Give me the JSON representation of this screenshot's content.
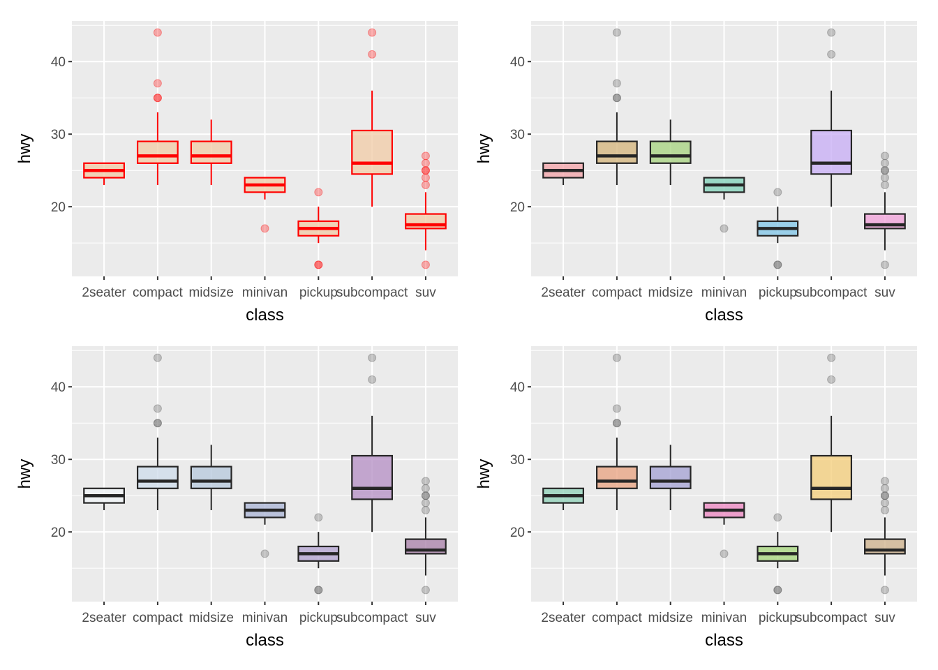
{
  "chart_data": [
    {
      "type": "box",
      "panel": "top-left",
      "xlabel": "class",
      "ylabel": "hwy",
      "ylim": [
        10.4,
        45.6
      ],
      "yticks": [
        20,
        30,
        40
      ],
      "ytick_labels": [
        "20",
        "30",
        "40"
      ],
      "grid": true,
      "categories": [
        "2seater",
        "compact",
        "midsize",
        "minivan",
        "pickup",
        "subcompact",
        "suv"
      ],
      "style": {
        "outline": "#FF0000",
        "fill": [
          "#F2CBA6",
          "#F2CBA6",
          "#F2CBA6",
          "#F2CBA6",
          "#F2CBA6",
          "#F2CBA6",
          "#F2CBA6"
        ],
        "outlier": "#FF0000"
      },
      "boxes": [
        {
          "lower": 23,
          "q1": 24,
          "median": 25,
          "q3": 26,
          "upper": 26,
          "outliers": []
        },
        {
          "lower": 23,
          "q1": 26,
          "median": 27,
          "q3": 29,
          "upper": 33,
          "outliers": [
            35,
            35,
            37,
            44
          ]
        },
        {
          "lower": 23,
          "q1": 26,
          "median": 27,
          "q3": 29,
          "upper": 32,
          "outliers": []
        },
        {
          "lower": 21,
          "q1": 22,
          "median": 23,
          "q3": 24,
          "upper": 24,
          "outliers": [
            17
          ]
        },
        {
          "lower": 15,
          "q1": 16,
          "median": 17,
          "q3": 18,
          "upper": 20,
          "outliers": [
            12,
            12,
            22
          ]
        },
        {
          "lower": 20,
          "q1": 24.5,
          "median": 26,
          "q3": 30.5,
          "upper": 36,
          "outliers": [
            41,
            44
          ]
        },
        {
          "lower": 14,
          "q1": 17,
          "median": 17.5,
          "q3": 19,
          "upper": 22,
          "outliers": [
            12,
            23,
            24,
            25,
            25,
            26,
            27
          ]
        }
      ]
    },
    {
      "type": "box",
      "panel": "top-right",
      "xlabel": "class",
      "ylabel": "hwy",
      "ylim": [
        10.4,
        45.6
      ],
      "yticks": [
        20,
        30,
        40
      ],
      "ytick_labels": [
        "20",
        "30",
        "40"
      ],
      "grid": true,
      "categories": [
        "2seater",
        "compact",
        "midsize",
        "minivan",
        "pickup",
        "subcompact",
        "suv"
      ],
      "style": {
        "outline": "#262626",
        "fill": [
          "#F4A3A8",
          "#D4B47A",
          "#A6D37E",
          "#7FD2B8",
          "#7FC6E8",
          "#C7ACF5",
          "#F1A0DA"
        ],
        "outlier": "#555555"
      },
      "boxes": [
        {
          "lower": 23,
          "q1": 24,
          "median": 25,
          "q3": 26,
          "upper": 26,
          "outliers": []
        },
        {
          "lower": 23,
          "q1": 26,
          "median": 27,
          "q3": 29,
          "upper": 33,
          "outliers": [
            35,
            35,
            37,
            44
          ]
        },
        {
          "lower": 23,
          "q1": 26,
          "median": 27,
          "q3": 29,
          "upper": 32,
          "outliers": []
        },
        {
          "lower": 21,
          "q1": 22,
          "median": 23,
          "q3": 24,
          "upper": 24,
          "outliers": [
            17
          ]
        },
        {
          "lower": 15,
          "q1": 16,
          "median": 17,
          "q3": 18,
          "upper": 20,
          "outliers": [
            12,
            12,
            22
          ]
        },
        {
          "lower": 20,
          "q1": 24.5,
          "median": 26,
          "q3": 30.5,
          "upper": 36,
          "outliers": [
            41,
            44
          ]
        },
        {
          "lower": 14,
          "q1": 17,
          "median": 17.5,
          "q3": 19,
          "upper": 22,
          "outliers": [
            12,
            23,
            24,
            25,
            25,
            26,
            27
          ]
        }
      ]
    },
    {
      "type": "box",
      "panel": "bottom-left",
      "xlabel": "class",
      "ylabel": "hwy",
      "ylim": [
        10.4,
        45.6
      ],
      "yticks": [
        20,
        30,
        40
      ],
      "ytick_labels": [
        "20",
        "30",
        "40"
      ],
      "grid": true,
      "categories": [
        "2seater",
        "compact",
        "midsize",
        "minivan",
        "pickup",
        "subcompact",
        "suv"
      ],
      "style": {
        "outline": "#262626",
        "fill": [
          "#F0F4F7",
          "#CEDCEB",
          "#B6C8DC",
          "#A9B4D6",
          "#B1A1D0",
          "#B48EC4",
          "#A87FA8"
        ],
        "outlier": "#555555"
      },
      "boxes": [
        {
          "lower": 23,
          "q1": 24,
          "median": 25,
          "q3": 26,
          "upper": 26,
          "outliers": []
        },
        {
          "lower": 23,
          "q1": 26,
          "median": 27,
          "q3": 29,
          "upper": 33,
          "outliers": [
            35,
            35,
            37,
            44
          ]
        },
        {
          "lower": 23,
          "q1": 26,
          "median": 27,
          "q3": 29,
          "upper": 32,
          "outliers": []
        },
        {
          "lower": 21,
          "q1": 22,
          "median": 23,
          "q3": 24,
          "upper": 24,
          "outliers": [
            17
          ]
        },
        {
          "lower": 15,
          "q1": 16,
          "median": 17,
          "q3": 18,
          "upper": 20,
          "outliers": [
            12,
            12,
            22
          ]
        },
        {
          "lower": 20,
          "q1": 24.5,
          "median": 26,
          "q3": 30.5,
          "upper": 36,
          "outliers": [
            41,
            44
          ]
        },
        {
          "lower": 14,
          "q1": 17,
          "median": 17.5,
          "q3": 19,
          "upper": 22,
          "outliers": [
            12,
            23,
            24,
            25,
            25,
            26,
            27
          ]
        }
      ]
    },
    {
      "type": "box",
      "panel": "bottom-right",
      "xlabel": "class",
      "ylabel": "hwy",
      "ylim": [
        10.4,
        45.6
      ],
      "yticks": [
        20,
        30,
        40
      ],
      "ytick_labels": [
        "20",
        "30",
        "40"
      ],
      "grid": true,
      "categories": [
        "2seater",
        "compact",
        "midsize",
        "minivan",
        "pickup",
        "subcompact",
        "suv"
      ],
      "style": {
        "outline": "#262626",
        "fill": [
          "#8FD1B8",
          "#E8A27F",
          "#A3A0D3",
          "#EE86C2",
          "#A4D67A",
          "#F4CD78",
          "#CDB08A"
        ],
        "outlier": "#555555"
      },
      "boxes": [
        {
          "lower": 23,
          "q1": 24,
          "median": 25,
          "q3": 26,
          "upper": 26,
          "outliers": []
        },
        {
          "lower": 23,
          "q1": 26,
          "median": 27,
          "q3": 29,
          "upper": 33,
          "outliers": [
            35,
            35,
            37,
            44
          ]
        },
        {
          "lower": 23,
          "q1": 26,
          "median": 27,
          "q3": 29,
          "upper": 32,
          "outliers": []
        },
        {
          "lower": 21,
          "q1": 22,
          "median": 23,
          "q3": 24,
          "upper": 24,
          "outliers": [
            17
          ]
        },
        {
          "lower": 15,
          "q1": 16,
          "median": 17,
          "q3": 18,
          "upper": 20,
          "outliers": [
            12,
            12,
            22
          ]
        },
        {
          "lower": 20,
          "q1": 24.5,
          "median": 26,
          "q3": 30.5,
          "upper": 36,
          "outliers": [
            41,
            44
          ]
        },
        {
          "lower": 14,
          "q1": 17,
          "median": 17.5,
          "q3": 19,
          "upper": 22,
          "outliers": [
            12,
            23,
            24,
            25,
            25,
            26,
            27
          ]
        }
      ]
    }
  ]
}
